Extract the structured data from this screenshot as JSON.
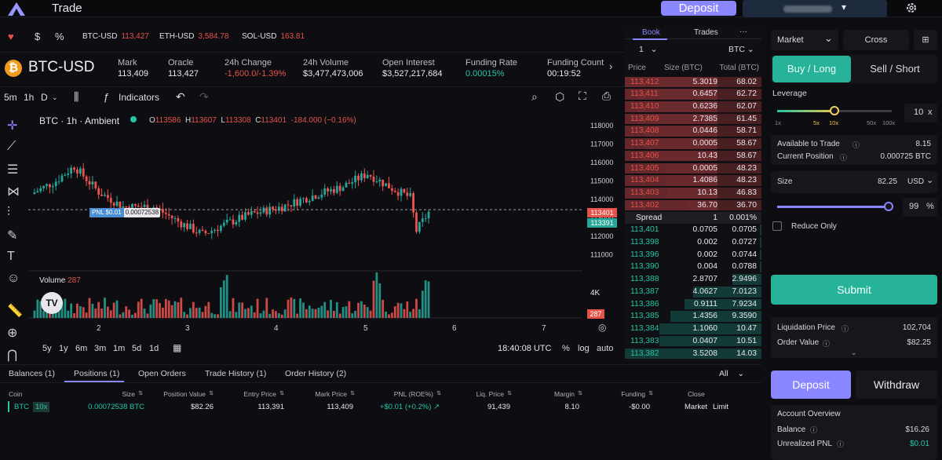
{
  "app": {
    "title": "Trade",
    "deposit": "Deposit"
  },
  "ticker": [
    {
      "sym": "BTC-USD",
      "val": "113,427"
    },
    {
      "sym": "ETH-USD",
      "val": "3,584.78"
    },
    {
      "sym": "SOL-USD",
      "val": "163.81"
    }
  ],
  "ticker_icons": {
    "fav": "heart-icon",
    "usd": "$",
    "pct": "%"
  },
  "market": {
    "name": "BTC-USD",
    "stats": [
      {
        "label": "Mark",
        "value": "113,409",
        "color": "#e8e8ee"
      },
      {
        "label": "Oracle",
        "value": "113,427",
        "color": "#e8e8ee"
      },
      {
        "label": "24h Change",
        "value": "-1,600.0/-1.39%",
        "color": "#e5534b"
      },
      {
        "label": "24h Volume",
        "value": "$3,477,473,006",
        "color": "#e8e8ee"
      },
      {
        "label": "Open Interest",
        "value": "$3,527,217,684",
        "color": "#e8e8ee"
      },
      {
        "label": "Funding Rate",
        "value": "0.00015%",
        "color": "#26c6a4"
      },
      {
        "label": "Funding Count",
        "value": "00:19:52",
        "color": "#e8e8ee"
      }
    ]
  },
  "toolbar": {
    "tf1": "5m",
    "tf2": "1h",
    "tf3": "D",
    "indicators": "Indicators"
  },
  "chart": {
    "title": "BTC · 1h · Ambient",
    "ohlc": {
      "o_label": "O",
      "o": "113586",
      "h_label": "H",
      "h": "113607",
      "l_label": "L",
      "l": "113308",
      "c_label": "C",
      "c": "113401",
      "chg": "-184.000 (−0.16%)"
    },
    "pnl_tag": "PNL $0.01",
    "pos_size": "0.00072538",
    "price_tag": "113401",
    "entry_tag": "113391",
    "volume_label": "Volume",
    "volume_val": "287",
    "vol_tag": "287",
    "vol_axis": "4K",
    "time_label": "18:40:08 UTC",
    "ranges": [
      "5y",
      "1y",
      "6m",
      "3m",
      "1m",
      "5d",
      "1d"
    ],
    "opt_pct": "%",
    "opt_log": "log",
    "opt_auto": "auto"
  },
  "chart_data": {
    "type": "candlestick",
    "title": "BTC · 1h · Ambient",
    "yticks": [
      118000,
      117000,
      116000,
      115000,
      114000,
      113000,
      112000,
      111000
    ],
    "xticks": [
      "2",
      "3",
      "4",
      "5",
      "6",
      "7"
    ],
    "ylim": [
      110400,
      118400
    ],
    "last_price": 113401,
    "entry_price": 113391
  },
  "book": {
    "tab_book": "Book",
    "tab_trades": "Trades",
    "more": "···",
    "group": "1",
    "unit": "BTC",
    "h_price": "Price",
    "h_size": "Size (BTC)",
    "h_total": "Total (BTC)",
    "asks": [
      [
        "113,412",
        "5.3019",
        "68.02"
      ],
      [
        "113,411",
        "0.6457",
        "62.72"
      ],
      [
        "113,410",
        "0.6236",
        "62.07"
      ],
      [
        "113,409",
        "2.7385",
        "61.45"
      ],
      [
        "113,408",
        "0.0446",
        "58.71"
      ],
      [
        "113,407",
        "0.0005",
        "58.67"
      ],
      [
        "113,406",
        "10.43",
        "58.67"
      ],
      [
        "113,405",
        "0.0005",
        "48.23"
      ],
      [
        "113,404",
        "1.4086",
        "48.23"
      ],
      [
        "113,403",
        "10.13",
        "46.83"
      ],
      [
        "113,402",
        "36.70",
        "36.70"
      ]
    ],
    "spread": {
      "label": "Spread",
      "val": "1",
      "pct": "0.001%"
    },
    "bids": [
      [
        "113,401",
        "0.0705",
        "0.0705"
      ],
      [
        "113,398",
        "0.002",
        "0.0727"
      ],
      [
        "113,396",
        "0.002",
        "0.0744"
      ],
      [
        "113,390",
        "0.004",
        "0.0788"
      ],
      [
        "113,388",
        "2.8707",
        "2.9496"
      ],
      [
        "113,387",
        "4.0627",
        "7.0123"
      ],
      [
        "113,386",
        "0.9111",
        "7.9234"
      ],
      [
        "113,385",
        "1.4356",
        "9.3590"
      ],
      [
        "113,384",
        "1.1060",
        "10.47"
      ],
      [
        "113,383",
        "0.0407",
        "10.51"
      ],
      [
        "113,382",
        "3.5208",
        "14.03"
      ]
    ]
  },
  "order": {
    "type": "Market",
    "margin": "Cross",
    "buy": "Buy / Long",
    "sell": "Sell / Short",
    "leverage_label": "Leverage",
    "lev_ticks": [
      "1x",
      "5x",
      "10x",
      "50x",
      "100x"
    ],
    "lev_val": "10",
    "lev_x": "x",
    "avail_label": "Available to Trade",
    "avail": "8.15",
    "curpos_label": "Current Position",
    "curpos": "0.000725 BTC",
    "size_label": "Size",
    "size_val": "82.25",
    "size_unit": "USD",
    "pct_val": "99",
    "pct_sign": "%",
    "reduce_only": "Reduce Only",
    "submit": "Submit",
    "liq_label": "Liquidation Price",
    "liq": "102,704",
    "ov_label": "Order Value",
    "ov": "$82.25"
  },
  "bottom": {
    "tabs": [
      "Balances (1)",
      "Positions (1)",
      "Open Orders",
      "Trade History (1)",
      "Order History (2)"
    ],
    "filter": "All",
    "headers": [
      "Coin",
      "Size",
      "Position Value",
      "Entry Price",
      "Mark Price",
      "PNL (ROE%)",
      "Liq. Price",
      "Margin",
      "Funding",
      "Close"
    ],
    "row": {
      "coin": "BTC",
      "lev": "10x",
      "size": "0.00072538 BTC",
      "pv": "$82.26",
      "entry": "113,391",
      "mark": "113,409",
      "pnl": "+$0.01 (+0.2%)",
      "liq": "91,439",
      "margin": "8.10",
      "funding": "-$0.00",
      "close_market": "Market",
      "close_limit": "Limit"
    }
  },
  "account": {
    "deposit": "Deposit",
    "withdraw": "Withdraw",
    "overview": "Account Overview",
    "balance_label": "Balance",
    "balance": "$16.26",
    "upnl_label": "Unrealized PNL",
    "upnl": "$0.01"
  }
}
